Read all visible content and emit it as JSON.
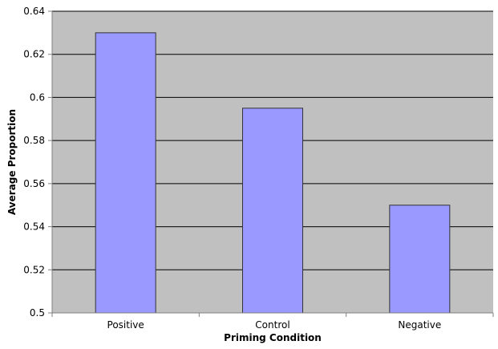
{
  "chart_data": {
    "type": "bar",
    "title": "",
    "xlabel": "Priming Condition",
    "ylabel": "Average Proportion",
    "categories": [
      "Positive",
      "Control",
      "Negative"
    ],
    "values": [
      0.63,
      0.595,
      0.55
    ],
    "ylim": [
      0.5,
      0.64
    ],
    "yticks": [
      0.5,
      0.52,
      0.54,
      0.56,
      0.58,
      0.6,
      0.62,
      0.64
    ],
    "ytick_labels": [
      "0.5",
      "0.52",
      "0.54",
      "0.56",
      "0.58",
      "0.6",
      "0.62",
      "0.64"
    ],
    "grid": true,
    "legend": "none",
    "colors": {
      "bar_fill": "#9999ff",
      "bar_stroke": "#333333",
      "plot_background": "#c0c0c0",
      "gridline": "#000000",
      "axis": "#808080"
    }
  }
}
